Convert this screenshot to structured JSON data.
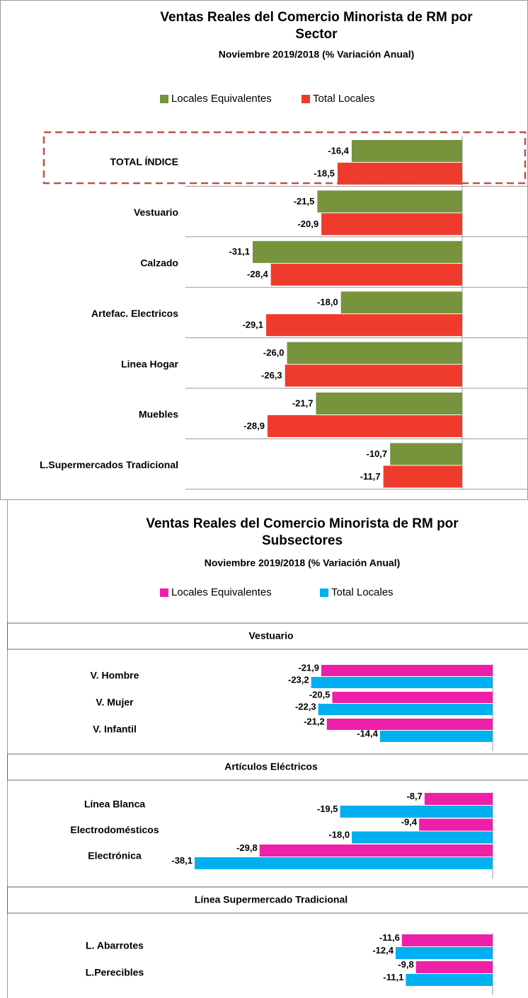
{
  "chart_data": [
    {
      "type": "bar",
      "orientation": "horizontal",
      "title": "Ventas Reales del Comercio Minorista de RM por Sector",
      "subtitle": "Noviembre 2019/2018 (% Variación Anual)",
      "categories": [
        "TOTAL ÍNDICE",
        "Vestuario",
        "Calzado",
        "Artefac. Electricos",
        "Linea Hogar",
        "Muebles",
        "L.Supermercados Tradicional"
      ],
      "highlight_index": 0,
      "series": [
        {
          "name": "Locales Equivalentes",
          "color": "#77933c",
          "values": [
            -16.4,
            -21.5,
            -31.1,
            -18.0,
            -26.0,
            -21.7,
            -10.7
          ],
          "value_labels": [
            "-16,4",
            "-21,5",
            "-31,1",
            "-18,0",
            "-26,0",
            "-21,7",
            "-10,7"
          ]
        },
        {
          "name": "Total Locales",
          "color": "#ef3b2c",
          "values": [
            -18.5,
            -20.9,
            -28.4,
            -29.1,
            -26.3,
            -28.9,
            -11.7
          ],
          "value_labels": [
            "-18,5",
            "-20,9",
            "-28,4",
            "-29,1",
            "-26,3",
            "-28,9",
            "-11,7"
          ]
        }
      ],
      "xlim": [
        -40,
        10
      ]
    },
    {
      "type": "bar",
      "orientation": "horizontal",
      "title": "Ventas Reales del Comercio Minorista de RM por Subsectores",
      "subtitle": "Noviembre 2019/2018 (% Variación Anual)",
      "series": [
        {
          "name": "Locales Equivalentes",
          "color": "#ee1fa9"
        },
        {
          "name": "Total Locales",
          "color": "#00b0f0"
        }
      ],
      "xlim": [
        -40,
        5
      ],
      "panels": [
        {
          "title": "Vestuario",
          "categories": [
            "V. Hombre",
            "V. Mujer",
            "V. Infantil"
          ],
          "series": [
            {
              "values": [
                -21.9,
                -20.5,
                -21.2
              ],
              "value_labels": [
                "-21,9",
                "-20,5",
                "-21,2"
              ]
            },
            {
              "values": [
                -23.2,
                -22.3,
                -14.4
              ],
              "value_labels": [
                "-23,2",
                "-22,3",
                "-14,4"
              ]
            }
          ]
        },
        {
          "title": "Artículos Eléctricos",
          "categories": [
            "Línea Blanca",
            "Electrodomésticos",
            "Electrónica"
          ],
          "series": [
            {
              "values": [
                -8.7,
                -9.4,
                -29.8
              ],
              "value_labels": [
                "-8,7",
                "-9,4",
                "-29,8"
              ]
            },
            {
              "values": [
                -19.5,
                -18.0,
                -38.1
              ],
              "value_labels": [
                "-19,5",
                "-18,0",
                "-38,1"
              ]
            }
          ]
        },
        {
          "title": "Línea Supermercado Tradicional",
          "categories": [
            "L. Abarrotes",
            "L.Perecibles"
          ],
          "series": [
            {
              "values": [
                -11.6,
                -9.8
              ],
              "value_labels": [
                "-11,6",
                "-9,8"
              ]
            },
            {
              "values": [
                -12.4,
                -11.1
              ],
              "value_labels": [
                "-12,4",
                "-11,1"
              ]
            }
          ]
        }
      ]
    }
  ]
}
